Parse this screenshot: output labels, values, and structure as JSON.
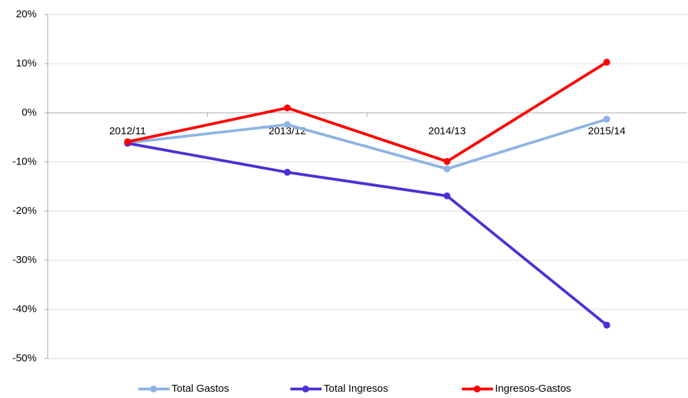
{
  "chart_data": {
    "type": "line",
    "categories": [
      "2012/11",
      "2013/12",
      "2014/13",
      "2015/14"
    ],
    "series": [
      {
        "name": "Total Gastos",
        "color": "#8eb4e3",
        "values": [
          -6.1,
          -2.4,
          -11.4,
          -1.3
        ]
      },
      {
        "name": "Total Ingresos",
        "color": "#4f2fd6",
        "values": [
          -6.2,
          -12.1,
          -16.9,
          -43.2
        ]
      },
      {
        "name": "Ingresos-Gastos",
        "color": "#ff0000",
        "values": [
          -5.9,
          1.0,
          -9.9,
          10.3
        ]
      }
    ],
    "ylim": [
      -50,
      20
    ],
    "yticks": [
      {
        "value": -50,
        "label": "-50%"
      },
      {
        "value": -40,
        "label": "-40%"
      },
      {
        "value": -30,
        "label": "-30%"
      },
      {
        "value": -20,
        "label": "-20%"
      },
      {
        "value": -10,
        "label": "-10%"
      },
      {
        "value": 0,
        "label": "0%"
      },
      {
        "value": 10,
        "label": "10%"
      },
      {
        "value": 20,
        "label": "20%"
      }
    ],
    "grid": true,
    "legend": "bottom"
  }
}
